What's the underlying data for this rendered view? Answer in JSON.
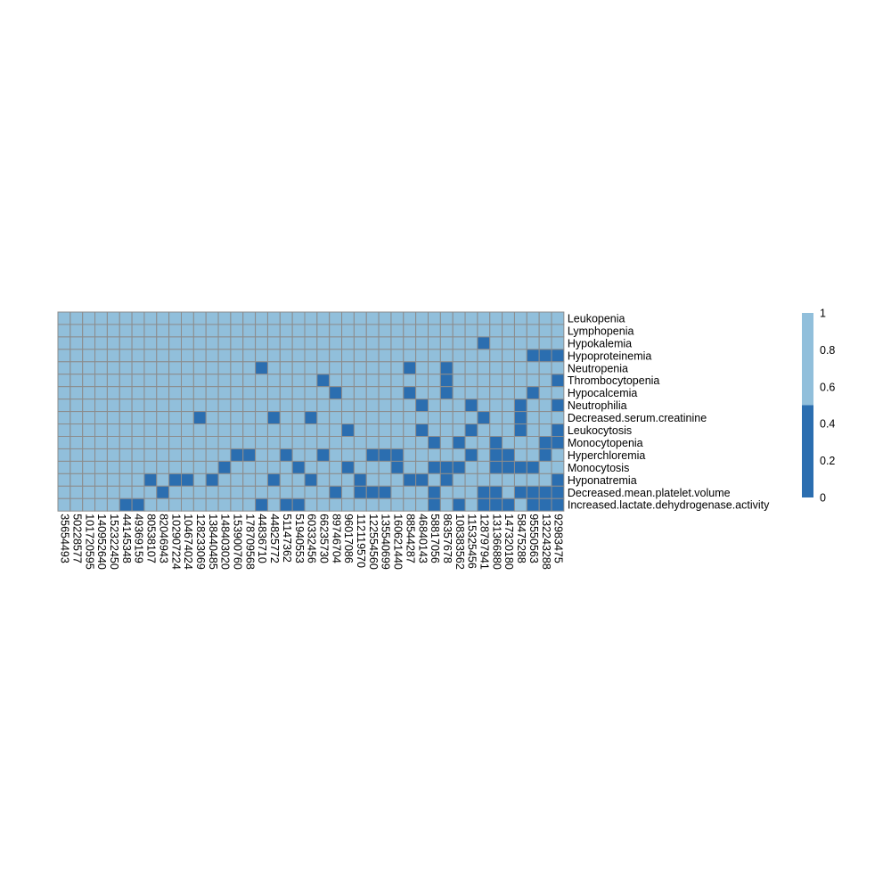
{
  "chart_data": {
    "type": "heatmap",
    "title": "",
    "xlabel": "",
    "ylabel": "",
    "value_range": [
      0,
      1
    ],
    "columns": [
      "35654493",
      "50228577",
      "101720595",
      "140952640",
      "152322450",
      "44145348",
      "49369159",
      "80538107",
      "82046943",
      "102907224",
      "104674024",
      "128233069",
      "138440485",
      "148403020",
      "153900760",
      "178709568",
      "44836710",
      "44825772",
      "51147362",
      "51940553",
      "60332456",
      "66235730",
      "89746704",
      "96017086",
      "112119570",
      "122554560",
      "135540699",
      "160621440",
      "88544287",
      "46840143",
      "58817056",
      "86357678",
      "108383562",
      "115325456",
      "128797941",
      "131366880",
      "147320180",
      "58475288",
      "95550563",
      "132243288",
      "92983475"
    ],
    "rows": [
      "Leukopenia",
      "Lymphopenia",
      "Hypokalemia",
      "Hypoproteinemia",
      "Neutropenia",
      "Thrombocytopenia",
      "Hypocalcemia",
      "Neutrophilia",
      "Decreased.serum.creatinine",
      "Leukocytosis",
      "Monocytopenia",
      "Hyperchloremia",
      "Monocytosis",
      "Hyponatremia",
      "Decreased.mean.platelet.volume",
      "Increased.lactate.dehydrogenase.activity"
    ],
    "zero_cells": [
      [
        2,
        34
      ],
      [
        3,
        38
      ],
      [
        3,
        39
      ],
      [
        3,
        40
      ],
      [
        4,
        16
      ],
      [
        4,
        28
      ],
      [
        4,
        31
      ],
      [
        5,
        21
      ],
      [
        5,
        31
      ],
      [
        5,
        40
      ],
      [
        6,
        22
      ],
      [
        6,
        28
      ],
      [
        6,
        31
      ],
      [
        6,
        38
      ],
      [
        7,
        29
      ],
      [
        7,
        33
      ],
      [
        7,
        37
      ],
      [
        7,
        40
      ],
      [
        8,
        11
      ],
      [
        8,
        17
      ],
      [
        8,
        20
      ],
      [
        8,
        34
      ],
      [
        8,
        37
      ],
      [
        9,
        23
      ],
      [
        9,
        29
      ],
      [
        9,
        33
      ],
      [
        9,
        37
      ],
      [
        9,
        40
      ],
      [
        10,
        30
      ],
      [
        10,
        32
      ],
      [
        10,
        35
      ],
      [
        10,
        39
      ],
      [
        10,
        40
      ],
      [
        11,
        14
      ],
      [
        11,
        15
      ],
      [
        11,
        18
      ],
      [
        11,
        21
      ],
      [
        11,
        25
      ],
      [
        11,
        26
      ],
      [
        11,
        27
      ],
      [
        11,
        33
      ],
      [
        11,
        35
      ],
      [
        11,
        36
      ],
      [
        11,
        39
      ],
      [
        12,
        13
      ],
      [
        12,
        19
      ],
      [
        12,
        23
      ],
      [
        12,
        27
      ],
      [
        12,
        30
      ],
      [
        12,
        31
      ],
      [
        12,
        32
      ],
      [
        12,
        35
      ],
      [
        12,
        36
      ],
      [
        12,
        37
      ],
      [
        12,
        38
      ],
      [
        13,
        7
      ],
      [
        13,
        9
      ],
      [
        13,
        10
      ],
      [
        13,
        12
      ],
      [
        13,
        17
      ],
      [
        13,
        20
      ],
      [
        13,
        24
      ],
      [
        13,
        28
      ],
      [
        13,
        29
      ],
      [
        13,
        31
      ],
      [
        13,
        40
      ],
      [
        14,
        8
      ],
      [
        14,
        22
      ],
      [
        14,
        24
      ],
      [
        14,
        25
      ],
      [
        14,
        26
      ],
      [
        14,
        30
      ],
      [
        14,
        34
      ],
      [
        14,
        35
      ],
      [
        14,
        37
      ],
      [
        14,
        38
      ],
      [
        14,
        39
      ],
      [
        14,
        40
      ],
      [
        15,
        5
      ],
      [
        15,
        6
      ],
      [
        15,
        16
      ],
      [
        15,
        18
      ],
      [
        15,
        19
      ],
      [
        15,
        30
      ],
      [
        15,
        32
      ],
      [
        15,
        34
      ],
      [
        15,
        35
      ],
      [
        15,
        36
      ],
      [
        15,
        38
      ],
      [
        15,
        39
      ],
      [
        15,
        40
      ]
    ],
    "colorbar": {
      "ticks": [
        "0",
        "0.2",
        "0.4",
        "0.6",
        "0.8",
        "1"
      ],
      "colors": {
        "low": "#2b6eb0",
        "high": "#91bfdb"
      }
    },
    "colors": {
      "grid": "#8c8c8c",
      "one": "#91bfdb",
      "zero": "#2b6eb0"
    }
  }
}
